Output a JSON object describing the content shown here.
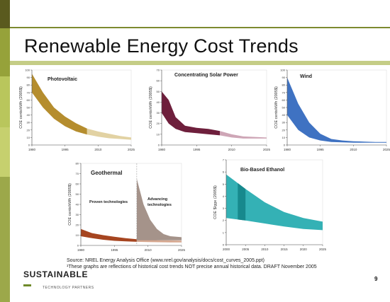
{
  "slide": {
    "title": "Renewable Energy Cost Trends",
    "source": "Source: NREL Energy Analysis Office (www.nrel.gov/analysis/docs/cost_curves_2005.ppt)",
    "note": "¹These graphs are reflections of historical cost trends NOT precise annual historical data. DRAFT November 2005",
    "logo_main": "SUSTAINABLE",
    "logo_sub": "TECHNOLOGY PARTNERS",
    "page_number": "9"
  },
  "colors": {
    "pv": "#b58d2e",
    "pv_light": "#e2d2a3",
    "csp": "#6e1f3c",
    "csp_light": "#cea6b6",
    "wind": "#3f72c2",
    "geo_proven": "#a64520",
    "geo_adv": "#a5938a",
    "geo_adv_light": "#d6a78f",
    "eth": "#34b1b5",
    "eth_dark": "#17898d"
  },
  "chart_data": [
    {
      "id": "pv",
      "type": "area",
      "title": "Photovoltaic",
      "ylabel": "COE cents/kWh (2005$)",
      "x_ticks": [
        "1980",
        "1995",
        "2010",
        "2025"
      ],
      "y_ticks": [
        "0",
        "10",
        "20",
        "30",
        "40",
        "50",
        "60",
        "70",
        "80",
        "90",
        "100"
      ],
      "xlim": [
        1980,
        2025
      ],
      "ylim": [
        0,
        100
      ],
      "projection_start": 2005,
      "series": [
        {
          "x": [
            1980,
            1985,
            1990,
            1995,
            2000,
            2005,
            2010,
            2015,
            2020,
            2025
          ],
          "low": [
            70,
            50,
            35,
            25,
            18,
            14,
            11,
            9,
            8,
            7
          ],
          "high": [
            95,
            70,
            50,
            38,
            29,
            22,
            18,
            15,
            12,
            10
          ]
        }
      ]
    },
    {
      "id": "csp",
      "type": "area",
      "title": "Concentrating Solar Power",
      "ylabel": "COE cents/kWh (2005$)",
      "x_ticks": [
        "1980",
        "1995",
        "2010",
        "2025"
      ],
      "y_ticks": [
        "0",
        "10",
        "20",
        "30",
        "40",
        "50",
        "60",
        "70"
      ],
      "xlim": [
        1980,
        2025
      ],
      "ylim": [
        0,
        70
      ],
      "projection_start": 2005,
      "series": [
        {
          "x": [
            1980,
            1983,
            1986,
            1990,
            1995,
            2000,
            2005,
            2010,
            2015,
            2025
          ],
          "low": [
            30,
            20,
            15,
            12,
            11,
            10,
            9,
            7,
            6,
            6
          ],
          "high": [
            50,
            42,
            26,
            18,
            16,
            15,
            13,
            10,
            8,
            7
          ]
        }
      ]
    },
    {
      "id": "wind",
      "type": "area",
      "title": "Wind",
      "ylabel": "COE cents/kWh (2005$)",
      "x_ticks": [
        "1980",
        "1995",
        "2010",
        "2025"
      ],
      "y_ticks": [
        "0",
        "10",
        "20",
        "30",
        "40",
        "50",
        "60",
        "70",
        "80",
        "90",
        "100"
      ],
      "xlim": [
        1980,
        2025
      ],
      "ylim": [
        0,
        100
      ],
      "projection_start": 2005,
      "series": [
        {
          "x": [
            1980,
            1985,
            1990,
            1995,
            2000,
            2005,
            2010,
            2015,
            2020,
            2025
          ],
          "low": [
            40,
            20,
            10,
            6,
            4,
            3.5,
            3,
            3,
            3,
            3
          ],
          "high": [
            90,
            55,
            30,
            15,
            8,
            6,
            5,
            4.5,
            4,
            4
          ]
        }
      ]
    },
    {
      "id": "geothermal",
      "type": "area",
      "title": "Geothermal",
      "ylabel": "COE cents/kWh (2005$)",
      "x_ticks": [
        "1980",
        "1995",
        "2010",
        "2025"
      ],
      "y_ticks": [
        "0",
        "10",
        "20",
        "30",
        "40",
        "50",
        "60",
        "70",
        "80"
      ],
      "xlim": [
        1980,
        2025
      ],
      "ylim": [
        0,
        80
      ],
      "projection_start": 2005,
      "series": [
        {
          "name": "Proven technologies",
          "x": [
            1980,
            1985,
            1990,
            1995,
            2000,
            2005,
            2010,
            2015,
            2020,
            2025
          ],
          "low": [
            9,
            7,
            5.5,
            4.5,
            4,
            3.5,
            3.3,
            3.1,
            3,
            3
          ],
          "high": [
            16,
            12,
            10,
            8.5,
            7,
            6,
            5.5,
            5,
            4.8,
            4.6
          ]
        },
        {
          "name": "Advancing technologies",
          "x": [
            2005,
            2008,
            2011,
            2014,
            2017,
            2020,
            2025
          ],
          "low": [
            5,
            5,
            5,
            5,
            5,
            5,
            5
          ],
          "high": [
            65,
            40,
            25,
            16,
            11,
            9,
            8
          ]
        }
      ]
    },
    {
      "id": "ethanol",
      "type": "area",
      "title": "Bio-Based Ethanol",
      "ylabel": "COE $/gge (2005$)",
      "x_ticks": [
        "2000",
        "2005",
        "2010",
        "2015",
        "2020",
        "2025"
      ],
      "y_ticks": [
        "0",
        "1",
        "2",
        "3",
        "4",
        "5",
        "6",
        "7"
      ],
      "xlim": [
        2000,
        2025
      ],
      "ylim": [
        0,
        7
      ],
      "projection_start": 2005,
      "series": [
        {
          "x": [
            2000,
            2005,
            2010,
            2015,
            2020,
            2025
          ],
          "low": [
            2.2,
            2,
            1.75,
            1.5,
            1.3,
            1.2
          ],
          "high": [
            5.8,
            4.6,
            3.5,
            2.7,
            2.2,
            1.9
          ]
        }
      ]
    }
  ]
}
